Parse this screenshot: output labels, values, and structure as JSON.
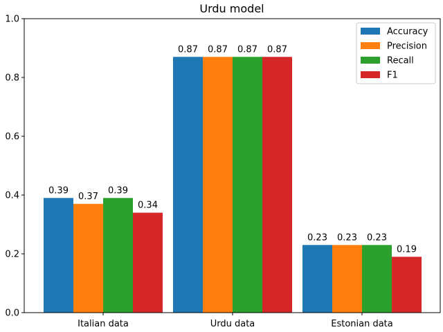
{
  "chart_data": {
    "type": "bar",
    "title": "Urdu model",
    "xlabel": "",
    "ylabel": "",
    "ylim": [
      0,
      1.0
    ],
    "yticks": [
      "0.0",
      "0.2",
      "0.4",
      "0.6",
      "0.8",
      "1.0"
    ],
    "categories": [
      "Italian data",
      "Urdu data",
      "Estonian data"
    ],
    "series": [
      {
        "name": "Accuracy",
        "color": "#1f77b4",
        "values": [
          0.39,
          0.87,
          0.23
        ],
        "labels": [
          "0.39",
          "0.87",
          "0.23"
        ]
      },
      {
        "name": "Precision",
        "color": "#ff7f0e",
        "values": [
          0.37,
          0.87,
          0.23
        ],
        "labels": [
          "0.37",
          "0.87",
          "0.23"
        ]
      },
      {
        "name": "Recall",
        "color": "#2ca02c",
        "values": [
          0.39,
          0.87,
          0.23
        ],
        "labels": [
          "0.39",
          "0.87",
          "0.23"
        ]
      },
      {
        "name": "F1",
        "color": "#d62728",
        "values": [
          0.34,
          0.87,
          0.19
        ],
        "labels": [
          "0.34",
          "0.87",
          "0.19"
        ]
      }
    ],
    "legend": "top-right",
    "grid": false
  }
}
